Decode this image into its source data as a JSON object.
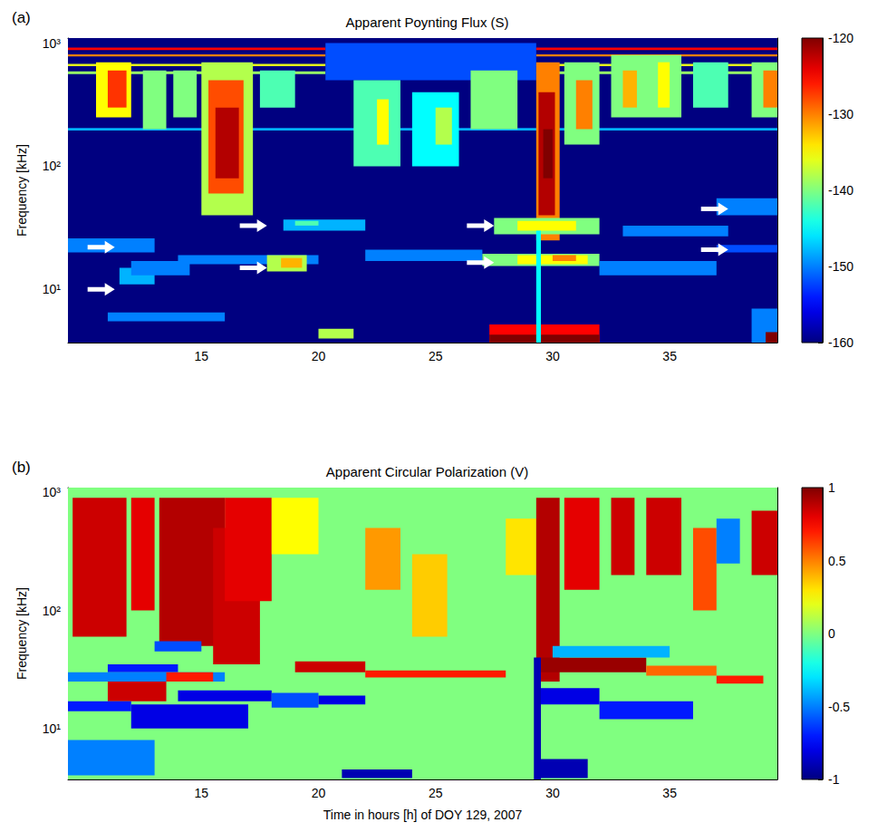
{
  "chart_data": [
    {
      "type": "heatmap",
      "panel": "(a)",
      "title": "Apparent Poynting Flux (S)",
      "y_label": "Frequency [kHz]",
      "log": "y",
      "grid": false,
      "xlim": [
        9.3,
        39.6
      ],
      "xticks": [
        15,
        20,
        25,
        30,
        35
      ],
      "ylim": [
        3.7,
        1100
      ],
      "yticks": [
        {
          "value": 10,
          "label": "10¹"
        },
        {
          "value": 100,
          "label": "10²"
        },
        {
          "value": 1000,
          "label": "10³"
        }
      ],
      "colorbar_range": [
        -160,
        -120
      ],
      "colorbar_ticks": [
        -160,
        -150,
        -140,
        -130,
        -120
      ],
      "cells": [
        [
          9.3,
          39.6,
          3.7,
          1100,
          -160
        ],
        [
          9.3,
          20.3,
          880,
          920,
          -125
        ],
        [
          29.3,
          39.6,
          880,
          920,
          -125
        ],
        [
          9.3,
          20.3,
          780,
          810,
          -130
        ],
        [
          29.3,
          39.6,
          780,
          810,
          -130
        ],
        [
          9.3,
          20.3,
          650,
          680,
          -136
        ],
        [
          29.3,
          39.6,
          650,
          680,
          -136
        ],
        [
          9.3,
          20.3,
          560,
          590,
          -139
        ],
        [
          29.3,
          39.6,
          560,
          590,
          -139
        ],
        [
          20.3,
          29.3,
          500,
          1000,
          -152
        ],
        [
          9.3,
          39.6,
          195,
          205,
          -148
        ],
        [
          10.5,
          12,
          250,
          700,
          -135
        ],
        [
          11,
          11.8,
          300,
          600,
          -127
        ],
        [
          12.5,
          13.5,
          200,
          600,
          -140
        ],
        [
          13.8,
          14.8,
          250,
          600,
          -140
        ],
        [
          15,
          17.2,
          40,
          700,
          -138
        ],
        [
          15.3,
          16.8,
          60,
          500,
          -128
        ],
        [
          15.6,
          16.6,
          80,
          300,
          -122
        ],
        [
          17.5,
          19,
          300,
          600,
          -142
        ],
        [
          21.5,
          23.5,
          100,
          500,
          -142
        ],
        [
          22.5,
          23,
          150,
          350,
          -135
        ],
        [
          24,
          26,
          100,
          400,
          -145
        ],
        [
          25,
          25.7,
          150,
          300,
          -138
        ],
        [
          26.5,
          28.5,
          200,
          600,
          -140
        ],
        [
          29.3,
          30.3,
          25,
          700,
          -130
        ],
        [
          29.4,
          30.1,
          40,
          400,
          -122
        ],
        [
          29.6,
          30,
          80,
          200,
          -120
        ],
        [
          30.5,
          32,
          150,
          700,
          -140
        ],
        [
          31,
          31.7,
          200,
          500,
          -130
        ],
        [
          32.5,
          35.5,
          250,
          800,
          -140
        ],
        [
          33,
          33.6,
          300,
          600,
          -132
        ],
        [
          34.5,
          35,
          300,
          700,
          -135
        ],
        [
          36,
          37.5,
          300,
          700,
          -142
        ],
        [
          38.5,
          39.6,
          250,
          700,
          -140
        ],
        [
          39,
          39.6,
          300,
          600,
          -130
        ],
        [
          9.3,
          13,
          20,
          26,
          -150
        ],
        [
          11.5,
          13,
          11,
          15,
          -148
        ],
        [
          12,
          14.5,
          13,
          17,
          -150
        ],
        [
          14,
          20,
          16,
          19,
          -150
        ],
        [
          17.8,
          19.5,
          14,
          19,
          -138
        ],
        [
          18.4,
          19.3,
          15,
          18,
          -132
        ],
        [
          18.5,
          22,
          30,
          37,
          -148
        ],
        [
          19,
          20,
          33,
          36,
          -142
        ],
        [
          22,
          27,
          17,
          21,
          -150
        ],
        [
          27,
          32,
          15.5,
          19.5,
          -140
        ],
        [
          28.5,
          31.5,
          16,
          19,
          -135
        ],
        [
          30,
          31,
          17,
          19,
          -130
        ],
        [
          27.5,
          32,
          28,
          38,
          -140
        ],
        [
          28.5,
          31,
          30,
          36,
          -135
        ],
        [
          32,
          37,
          13,
          17,
          -150
        ],
        [
          33,
          37.5,
          27,
          33,
          -150
        ],
        [
          37,
          39.6,
          40,
          55,
          -150
        ],
        [
          37,
          39.6,
          20,
          23,
          -152
        ],
        [
          11,
          16,
          5.5,
          6.5,
          -150
        ],
        [
          20,
          21.5,
          4,
          4.8,
          -138
        ],
        [
          27.3,
          32,
          3.7,
          5.2,
          -125
        ],
        [
          27.3,
          32,
          3.7,
          4.3,
          -120
        ],
        [
          29.3,
          29.5,
          3.7,
          30,
          -145
        ],
        [
          38.5,
          39.6,
          3.7,
          7,
          -150
        ],
        [
          39.1,
          39.6,
          3.7,
          4.5,
          -120
        ]
      ],
      "arrows": [
        [
          11.3,
          22
        ],
        [
          11.3,
          10
        ],
        [
          17.8,
          33
        ],
        [
          17.8,
          15
        ],
        [
          27.5,
          33
        ],
        [
          27.5,
          16.5
        ],
        [
          37.5,
          45
        ],
        [
          37.5,
          21
        ]
      ]
    },
    {
      "type": "heatmap",
      "panel": "(b)",
      "title": "Apparent Circular Polarization (V)",
      "x_label": "Time in hours [h] of DOY 129, 2007",
      "y_label": "Frequency [kHz]",
      "log": "y",
      "grid": false,
      "xlim": [
        9.3,
        39.6
      ],
      "xticks": [
        15,
        20,
        25,
        30,
        35
      ],
      "ylim": [
        3.7,
        1100
      ],
      "yticks": [
        {
          "value": 10,
          "label": "10¹"
        },
        {
          "value": 100,
          "label": "10²"
        },
        {
          "value": 1000,
          "label": "10³"
        }
      ],
      "colorbar_range": [
        -1,
        1
      ],
      "colorbar_ticks": [
        -1,
        -0.5,
        0,
        0.5,
        1
      ],
      "cells": [
        [
          9.3,
          39.6,
          3.7,
          1100,
          0
        ],
        [
          9.5,
          11.8,
          60,
          900,
          0.85
        ],
        [
          12,
          13,
          100,
          900,
          0.8
        ],
        [
          13.2,
          16,
          50,
          900,
          0.9
        ],
        [
          15.5,
          17.5,
          35,
          500,
          0.85
        ],
        [
          16,
          18,
          120,
          900,
          0.8
        ],
        [
          18,
          20,
          300,
          900,
          0.25
        ],
        [
          22,
          23.5,
          150,
          500,
          0.45
        ],
        [
          24,
          25.5,
          60,
          300,
          0.35
        ],
        [
          28,
          29.3,
          200,
          600,
          0.3
        ],
        [
          29.3,
          30.3,
          25,
          900,
          0.9
        ],
        [
          30.5,
          32,
          150,
          900,
          0.8
        ],
        [
          32.5,
          33.5,
          200,
          900,
          0.85
        ],
        [
          34,
          35.5,
          200,
          900,
          0.85
        ],
        [
          36,
          37,
          100,
          500,
          0.6
        ],
        [
          37,
          38,
          250,
          600,
          -0.5
        ],
        [
          38.5,
          39.6,
          200,
          700,
          0.85
        ],
        [
          13,
          15,
          45,
          55,
          -0.6
        ],
        [
          11,
          14,
          30,
          35,
          -0.7
        ],
        [
          9.3,
          16,
          25,
          30,
          -0.5
        ],
        [
          11,
          13.5,
          17,
          25,
          0.85
        ],
        [
          13.5,
          15.5,
          25,
          30,
          0.7
        ],
        [
          9.3,
          12,
          14,
          17,
          -0.7
        ],
        [
          12,
          17,
          10,
          16,
          -0.8
        ],
        [
          14,
          18,
          17,
          21,
          -0.8
        ],
        [
          19,
          22,
          30,
          37,
          0.85
        ],
        [
          22,
          28,
          27,
          31,
          0.7
        ],
        [
          18,
          20,
          15,
          20,
          -0.6
        ],
        [
          20,
          22,
          16,
          19,
          -0.8
        ],
        [
          29.5,
          34,
          30,
          40,
          0.95
        ],
        [
          34,
          37,
          28,
          34,
          0.55
        ],
        [
          29.5,
          32,
          16,
          22,
          -0.8
        ],
        [
          32,
          36,
          12,
          17,
          -0.7
        ],
        [
          30,
          35,
          40,
          50,
          -0.4
        ],
        [
          37,
          39,
          24,
          28,
          0.7
        ],
        [
          9.3,
          13,
          4,
          8,
          -0.5
        ],
        [
          21,
          24,
          3.8,
          4.5,
          -0.9
        ],
        [
          29.3,
          31.5,
          3.8,
          5.5,
          -0.9
        ],
        [
          29.2,
          29.5,
          3.7,
          40,
          -0.9
        ]
      ]
    }
  ]
}
